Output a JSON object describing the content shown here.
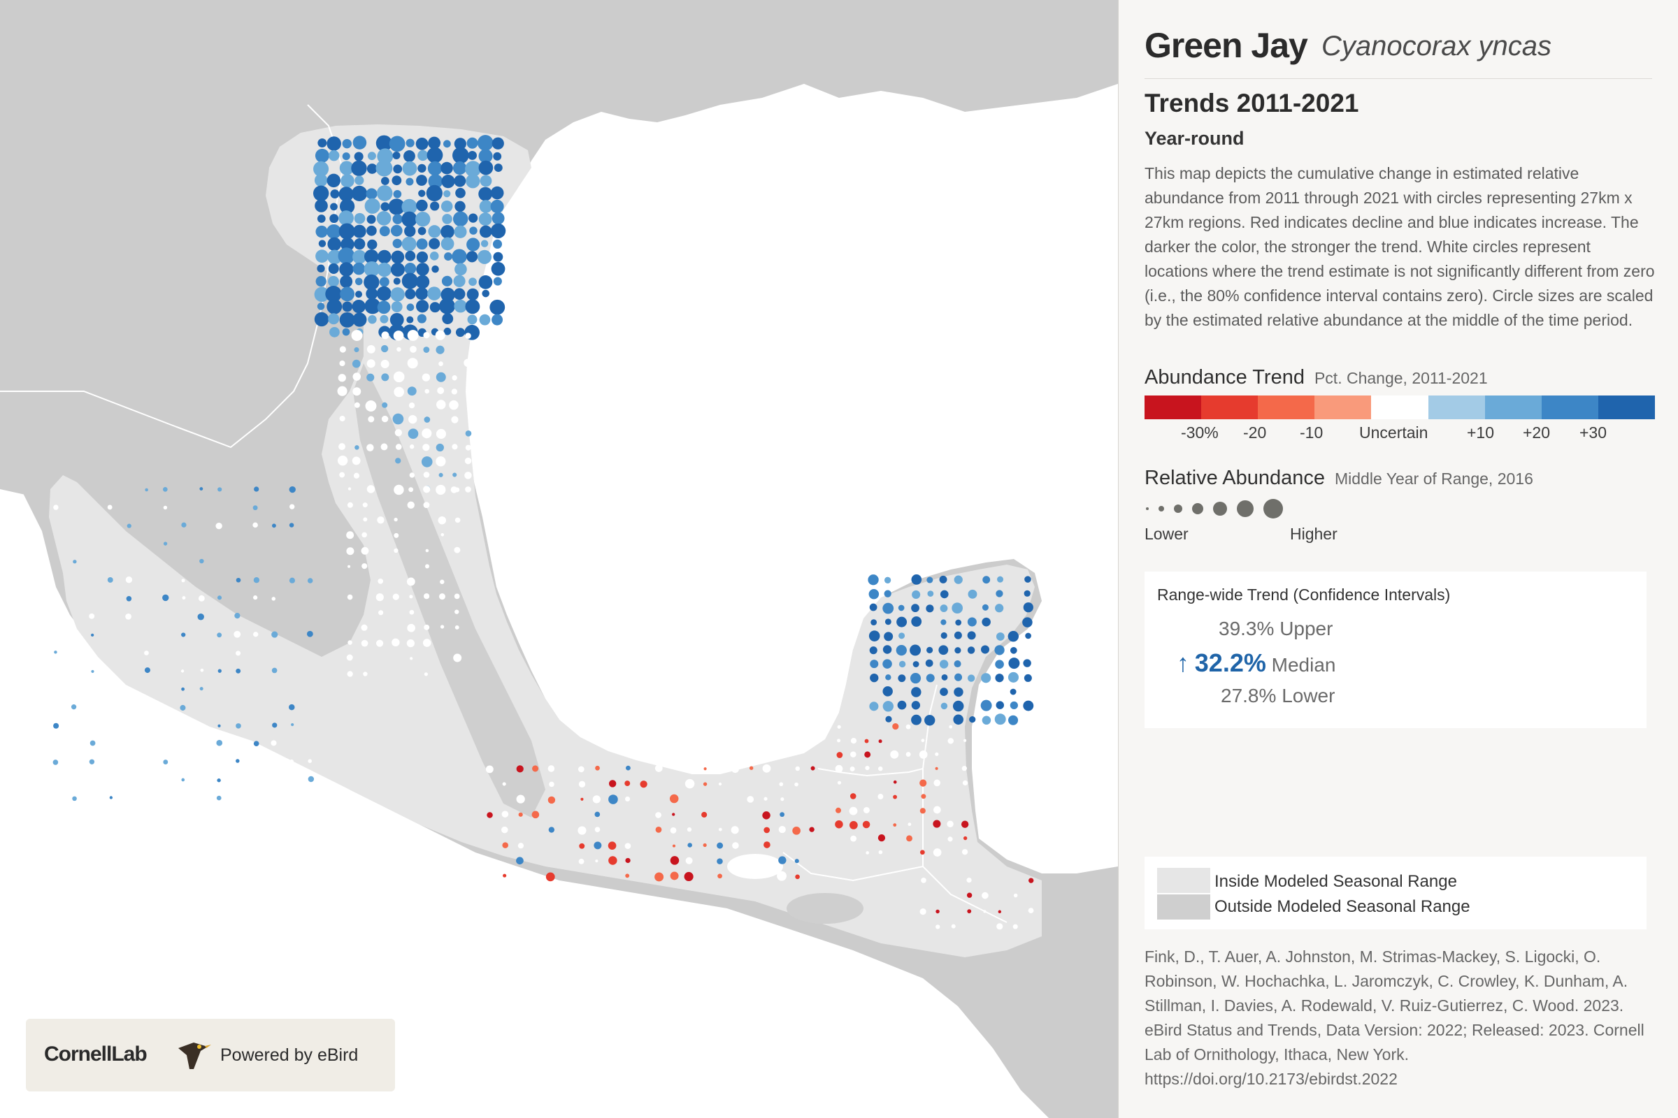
{
  "header": {
    "common_name": "Green Jay",
    "scientific_name": "Cyanocorax yncas"
  },
  "trend": {
    "title": "Trends 2011-2021",
    "season": "Year-round",
    "description": "This map depicts the cumulative change in estimated relative abundance from 2011 through 2021 with circles representing 27km x 27km regions. Red indicates decline and blue indicates increase. The darker the color, the stronger the trend. White circles represent locations where the trend estimate is not significantly different from zero (i.e., the 80% confidence interval contains zero). Circle sizes are scaled by the estimated relative abundance at the middle of the time period."
  },
  "abundance_trend_legend": {
    "title": "Abundance Trend",
    "subtitle": "Pct. Change, 2011-2021",
    "colors": [
      "#c8141e",
      "#e63b2e",
      "#f4694a",
      "#f99a7b",
      "#ffffff",
      "#a3cbe6",
      "#6aaad8",
      "#3d86c6",
      "#1f64ad"
    ],
    "labels": [
      "-30%",
      "-20",
      "-10",
      "Uncertain",
      "+10",
      "+20",
      "+30"
    ]
  },
  "relative_abundance_legend": {
    "title": "Relative Abundance",
    "subtitle": "Middle Year of Range, 2016",
    "low_label": "Lower",
    "high_label": "Higher",
    "dot_color": "#6f6f6a"
  },
  "range_wide_trend": {
    "title": "Range-wide Trend (Confidence Intervals)",
    "upper_value": "39.3%",
    "upper_label": "Upper",
    "median_arrow": "↑",
    "median_value": "32.2%",
    "median_label": "Median",
    "lower_value": "27.8%",
    "lower_label": "Lower"
  },
  "range_legend": {
    "inside_label": "Inside Modeled Seasonal Range",
    "outside_label": "Outside Modeled Seasonal Range",
    "inside_color": "#e6e6e6",
    "outside_color": "#cfcfcf"
  },
  "citation": "Fink, D., T. Auer, A. Johnston, M. Strimas-Mackey, S. Ligocki, O. Robinson, W. Hochachka, L. Jaromczyk, C. Crowley, K. Dunham, A. Stillman, I. Davies, A. Rodewald, V. Ruiz-Gutierrez, C. Wood. 2023. eBird Status and Trends, Data Version: 2022; Released: 2023. Cornell Lab of Ornithology, Ithaca, New York. https://doi.org/10.2173/ebirdst.2022",
  "logo": {
    "cornell_text": "CornellLab",
    "powered_text": "Powered by eBird"
  },
  "map_colors": {
    "water": "#ffffff",
    "land": "#cccccc",
    "range": "#e6e6e6",
    "border": "#ffffff"
  }
}
